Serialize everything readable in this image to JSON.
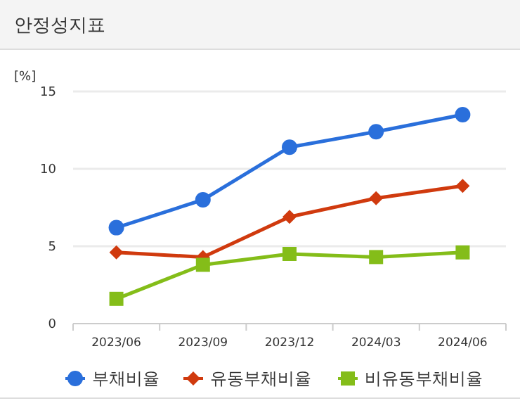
{
  "chart_data": {
    "type": "line",
    "title": "안정성지표",
    "ylabel": "[%]",
    "categories": [
      "2023/06",
      "2023/09",
      "2023/12",
      "2024/03",
      "2024/06"
    ],
    "series": [
      {
        "name": "부채비율",
        "color": "#2a6fdb",
        "marker": "circle",
        "values": [
          6.2,
          8.0,
          11.4,
          12.4,
          13.5
        ]
      },
      {
        "name": "유동부채비율",
        "color": "#d03a0e",
        "marker": "diamond",
        "values": [
          4.6,
          4.3,
          6.9,
          8.1,
          8.9
        ]
      },
      {
        "name": "비유동부채비율",
        "color": "#84bd19",
        "marker": "square",
        "values": [
          1.6,
          3.8,
          4.5,
          4.3,
          4.6
        ]
      }
    ],
    "ylim": [
      0,
      15
    ],
    "yticks": [
      0,
      5,
      10,
      15
    ],
    "grid": "y",
    "legend": "bottom"
  }
}
